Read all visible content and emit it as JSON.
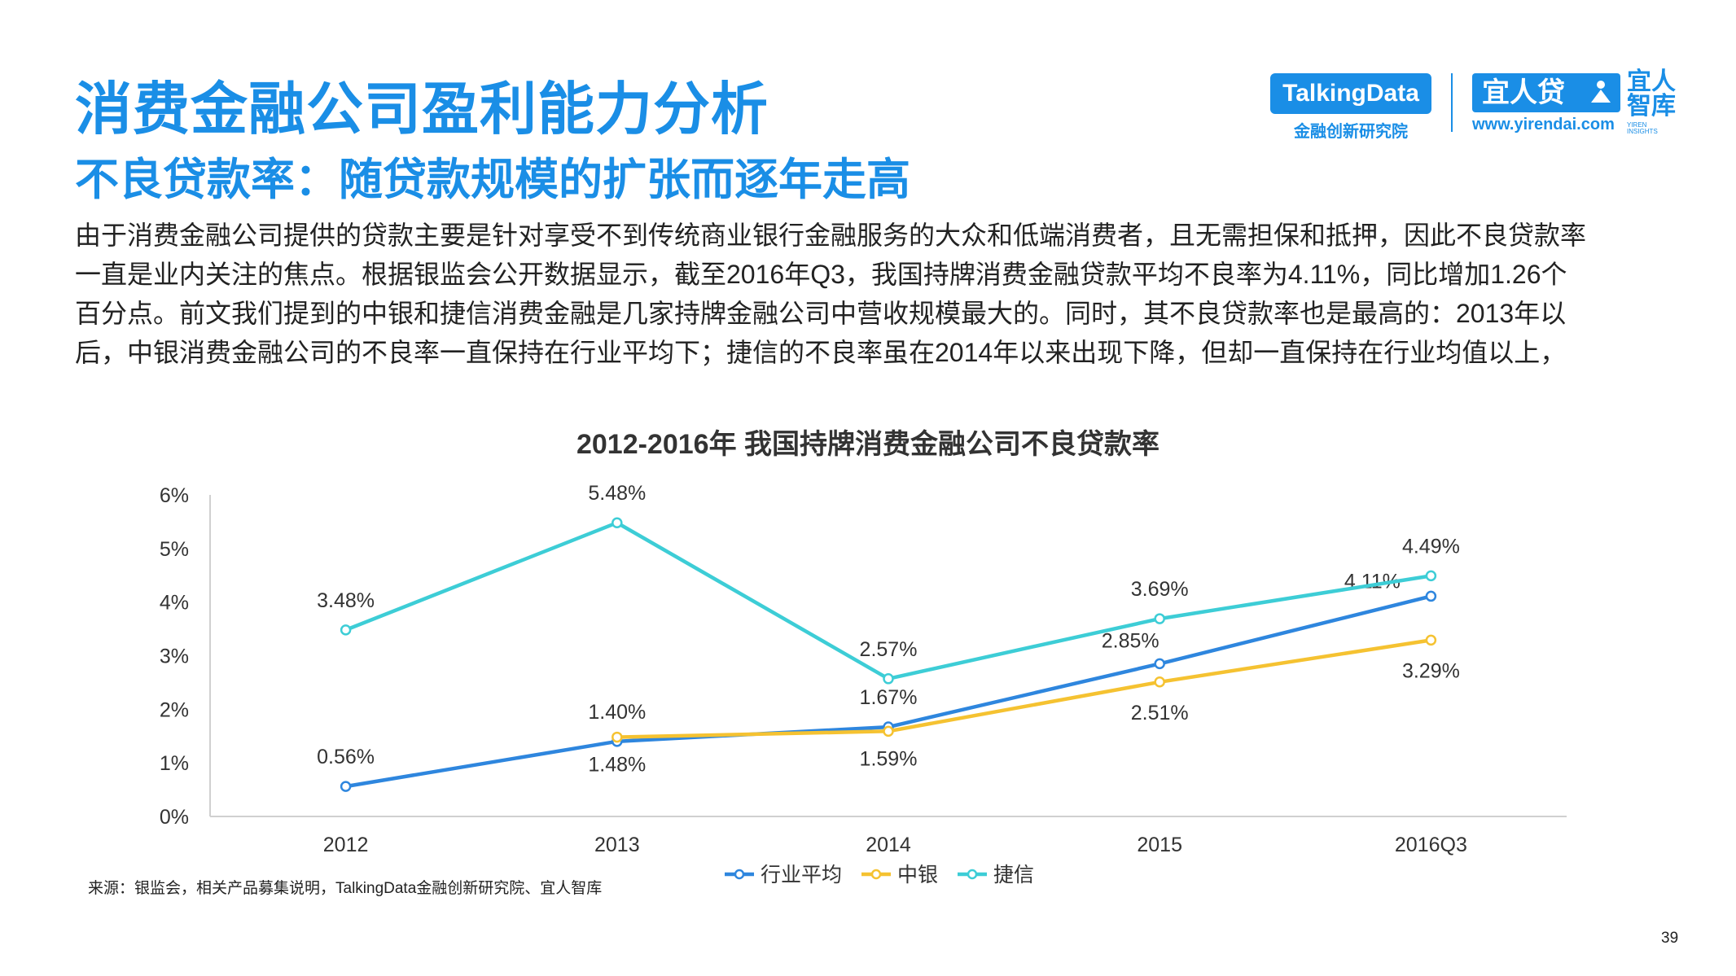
{
  "header": {
    "title": "消费金融公司盈利能力分析",
    "subtitle": "不良贷款率：随贷款规模的扩张而逐年走高"
  },
  "logos": {
    "talkingdata": "TalkingData",
    "talkingdata_sub": "金融创新研究院",
    "yirendai": "宜人贷",
    "yirendai_url": "www.yirendai.com",
    "yiren_insights": "宜人智库",
    "yiren_insights_en": "YIREN INSIGHTS"
  },
  "body": {
    "lines": [
      "由于消费金融公司提供的贷款主要是针对享受不到传统商业银行金融服务的大众和低端消费者，且无需担保和抵押，因此不良贷款率",
      "一直是业内关注的焦点。根据银监会公开数据显示，截至2016年Q3，我国持牌消费金融贷款平均不良率为4.11%，同比增加1.26个",
      "百分点。前文我们提到的中银和捷信消费金融是几家持牌金融公司中营收规模最大的。同时，其不良贷款率也是最高的：2013年以",
      "后，中银消费金融公司的不良率一直保持在行业平均下；捷信的不良率虽在2014年以来出现下降，但却一直保持在行业均值以上，"
    ]
  },
  "chart_data": {
    "type": "line",
    "title": "2012-2016年 我国持牌消费金融公司不良贷款率",
    "categories": [
      "2012",
      "2013",
      "2014",
      "2015",
      "2016Q3"
    ],
    "y_ticks": [
      "0%",
      "1%",
      "2%",
      "3%",
      "4%",
      "5%",
      "6%"
    ],
    "ylim": [
      0,
      6
    ],
    "unit": "%",
    "legend_position": "bottom",
    "series": [
      {
        "name": "行业平均",
        "color": "#2e86de",
        "values": [
          0.56,
          1.4,
          1.67,
          2.85,
          4.11
        ],
        "labels": [
          "0.56%",
          "1.40%",
          "1.67%",
          "2.85%",
          "4.11%"
        ]
      },
      {
        "name": "中银",
        "color": "#f5c231",
        "values": [
          null,
          1.48,
          1.59,
          2.51,
          3.29
        ],
        "labels": [
          null,
          "1.48%",
          "1.59%",
          "2.51%",
          "3.29%"
        ]
      },
      {
        "name": "捷信",
        "color": "#3dcdd6",
        "values": [
          3.48,
          5.48,
          2.57,
          3.69,
          4.49
        ],
        "labels": [
          "3.48%",
          "5.48%",
          "2.57%",
          "3.69%",
          "4.49%"
        ]
      }
    ]
  },
  "footer": {
    "source": "来源：银监会，相关产品募集说明，TalkingData金融创新研究院、宜人智库",
    "page_number": "39"
  }
}
